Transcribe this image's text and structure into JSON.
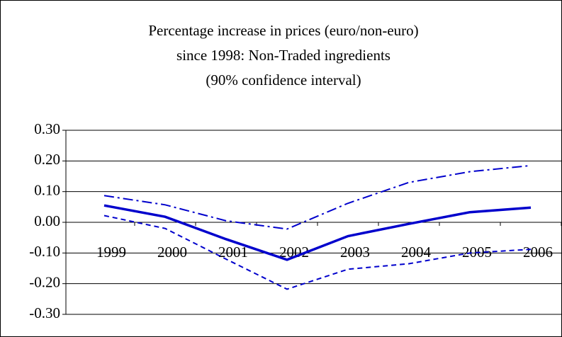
{
  "chart_data": {
    "type": "line",
    "title": [
      "Percentage increase in prices (euro/non-euro)",
      "since 1998: Non-Traded ingredients",
      "(90% confidence interval)"
    ],
    "categories": [
      "1999",
      "2000",
      "2001",
      "2002",
      "2003",
      "2004",
      "2005",
      "2006"
    ],
    "series": [
      {
        "color": "#0000cc",
        "style": "solid",
        "values": [
          0.055,
          0.018,
          -0.055,
          -0.122,
          -0.045,
          -0.005,
          0.033,
          0.048
        ]
      },
      {
        "color": "#0000cc",
        "style": "dashdot",
        "values": [
          0.087,
          0.057,
          0.005,
          -0.022,
          0.062,
          0.13,
          0.165,
          0.185
        ]
      },
      {
        "color": "#0000cc",
        "style": "dash",
        "values": [
          0.022,
          -0.02,
          -0.12,
          -0.218,
          -0.153,
          -0.135,
          -0.1,
          -0.088
        ]
      }
    ],
    "ylim": [
      -0.3,
      0.3
    ],
    "yticks": [
      {
        "value": -0.3,
        "label": "-0.30"
      },
      {
        "value": -0.2,
        "label": "-0.20"
      },
      {
        "value": -0.1,
        "label": "-0.10"
      },
      {
        "value": 0,
        "label": "0.00"
      },
      {
        "value": 0.1,
        "label": "0.10"
      },
      {
        "value": 0.2,
        "label": "0.20"
      },
      {
        "value": 0.3,
        "label": "0.30"
      }
    ],
    "grid": true
  }
}
